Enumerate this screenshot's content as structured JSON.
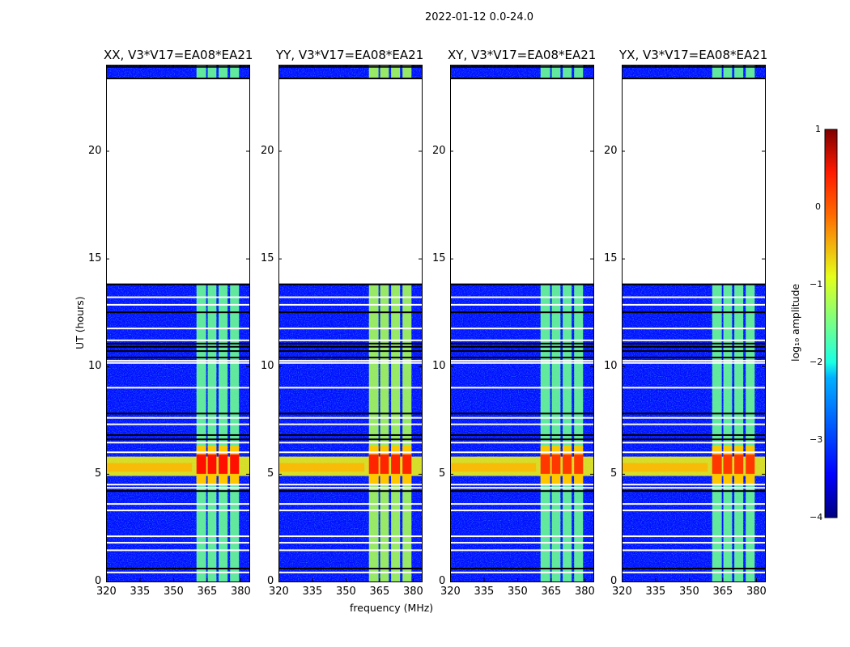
{
  "suptitle": "2022-01-12 0.0-24.0",
  "xlabel": "frequency (MHz)",
  "ylabel": "UT (hours)",
  "colorbar": {
    "label": "log₁₀ amplitude",
    "ticks": [
      "1",
      "0",
      "−1",
      "−2",
      "−3",
      "−4"
    ],
    "range": [
      -4,
      1
    ],
    "colormap": "jet"
  },
  "chart_data": {
    "type": "heatmap",
    "panels": [
      {
        "title": "XX, V3*V17=EA08*EA21",
        "hot_level": 0.3
      },
      {
        "title": "YY, V3*V17=EA08*EA21",
        "hot_level": 0.2
      },
      {
        "title": "XY, V3*V17=EA08*EA21",
        "hot_level": 0.1
      },
      {
        "title": "YX, V3*V17=EA08*EA21",
        "hot_level": 0.1
      }
    ],
    "xlim": [
      320,
      384
    ],
    "ylim": [
      0,
      24
    ],
    "xticks": [
      "320",
      "335",
      "350",
      "365",
      "380"
    ],
    "xtick_values": [
      320,
      335,
      350,
      365,
      380
    ],
    "yticks": [
      "0",
      "5",
      "10",
      "15",
      "20"
    ],
    "ytick_values": [
      0,
      5,
      10,
      15,
      20
    ],
    "background_level": -3.3,
    "no_data_interval_hours": [
      13.8,
      23.4
    ],
    "rfi_bands_mhz": [
      [
        360.4,
        364.7
      ],
      [
        365.4,
        369.3
      ],
      [
        370.3,
        374.3
      ],
      [
        375.4,
        379.4
      ]
    ],
    "rfi_level": -1.6,
    "hot_interval_hours": [
      4.9,
      5.8
    ],
    "hot_rfi_interval_hours": [
      4.5,
      6.3
    ],
    "flagged_rows_hours": [
      0.42,
      1.45,
      1.8,
      2.1,
      3.3,
      3.6,
      4.35,
      4.5,
      6.0,
      6.45,
      7.3,
      7.6,
      9.0,
      10.15,
      10.25,
      11.2,
      11.75,
      12.85,
      13.2
    ],
    "dropout_rows_hours": [
      0.6,
      4.2,
      6.6,
      6.8,
      7.8,
      10.4,
      10.7,
      10.9,
      11.05,
      12.5,
      13.8,
      23.9
    ]
  }
}
